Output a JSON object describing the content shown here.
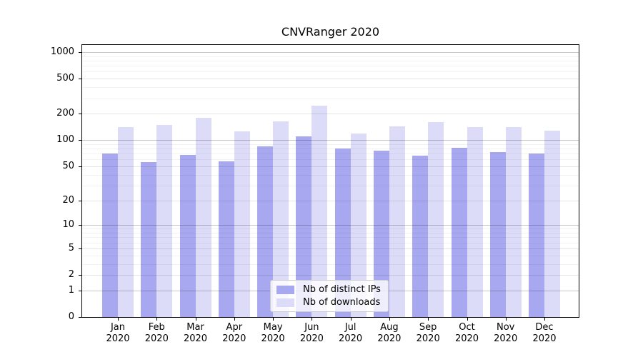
{
  "chart_data": {
    "type": "bar",
    "title": "CNVRanger 2020",
    "scale": "log1p",
    "grid": "on",
    "legend_position": "lower-center",
    "categories": [
      "Jan 2020",
      "Feb 2020",
      "Mar 2020",
      "Apr 2020",
      "May 2020",
      "Jun 2020",
      "Jul 2020",
      "Aug 2020",
      "Sep 2020",
      "Oct 2020",
      "Nov 2020",
      "Dec 2020"
    ],
    "series": [
      {
        "name": "Nb of distinct IPs",
        "color": "#a8a8f0",
        "values": [
          70,
          56,
          67,
          57,
          85,
          111,
          80,
          76,
          66,
          81,
          73,
          70
        ]
      },
      {
        "name": "Nb of downloads",
        "color": "#dcdcf8",
        "values": [
          140,
          150,
          180,
          126,
          165,
          245,
          120,
          143,
          160,
          140,
          140,
          128
        ]
      }
    ],
    "y_axis": {
      "ticks": [
        0,
        1,
        2,
        5,
        10,
        20,
        50,
        100,
        200,
        500,
        1000
      ],
      "major_decades": [
        1,
        10,
        100,
        1000
      ],
      "minor_gridlines": [
        3,
        4,
        6,
        7,
        8,
        9,
        30,
        40,
        60,
        70,
        80,
        90,
        300,
        400,
        600,
        700,
        800,
        900
      ],
      "ylim": [
        0,
        1000
      ]
    }
  }
}
